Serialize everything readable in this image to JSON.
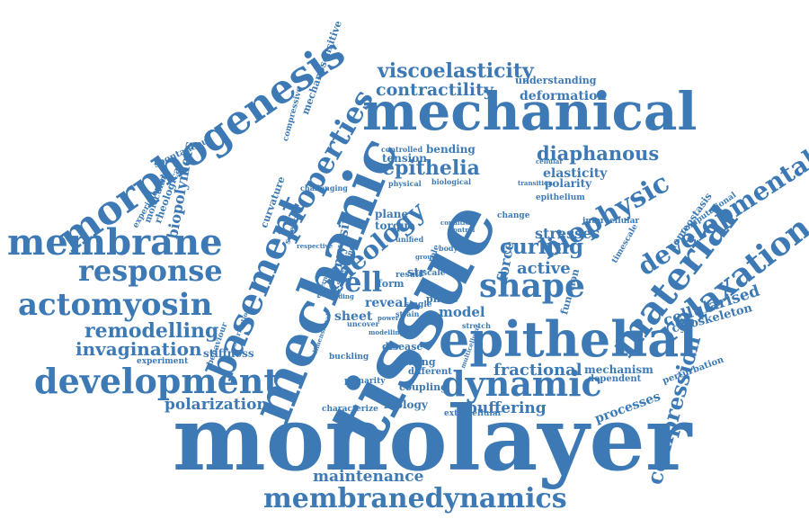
{
  "palette": {
    "word": "#3d7ab5",
    "background": "#ffffff"
  },
  "words": [
    "tissue",
    "monolayer",
    "mechanical",
    "mechanic",
    "epithelial",
    "morphogenesis",
    "membrane",
    "basement",
    "material",
    "relaxation",
    "development",
    "actomyosin",
    "membranedynamics",
    "properties",
    "response",
    "shape",
    "dynamic",
    "developmental",
    "viscoelasticity",
    "biophysic",
    "rheology",
    "contractility",
    "diaphanous",
    "epithelia",
    "curling",
    "cell",
    "remodelling",
    "invagination",
    "polarization",
    "compression",
    "maintenance",
    "active",
    "fractional",
    "buffering",
    "cellularised",
    "biopolymers",
    "stresses",
    "elasticity",
    "processes",
    "cytoskeleton",
    "deformation",
    "understanding",
    "mechanosensitive",
    "myosin",
    "force",
    "reveal",
    "model",
    "sheet",
    "tension",
    "bending",
    "plane",
    "torque",
    "form",
    "stiffness",
    "curvature",
    "rheological",
    "spontaneous",
    "molecular",
    "experimental",
    "compressive",
    "polarity",
    "function",
    "homeostasis",
    "mechanism",
    "dependent",
    "perturbation",
    "experiment",
    "behaviour",
    "biology",
    "coupling",
    "living",
    "different",
    "disease",
    "buckling",
    "extracellular",
    "characterize",
    "planarity",
    "timescale",
    "computational",
    "intercellular",
    "epithelium",
    "change",
    "physical",
    "biological",
    "controlled",
    "science",
    "challenging",
    "stretching",
    "respective",
    "single",
    "phase",
    "strain",
    "power",
    "external",
    "folding",
    "uncover",
    "stretch",
    "multicellular",
    "contribution",
    "dimensional",
    "result",
    "scale",
    "unified",
    "modelling",
    "role",
    "body",
    "group",
    "condition",
    "control",
    "transition",
    "cellular",
    "str"
  ]
}
